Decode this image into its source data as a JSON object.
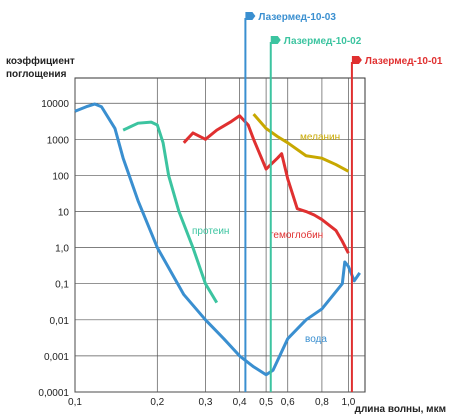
{
  "chart_data": {
    "type": "line",
    "log_x": true,
    "log_y": true,
    "grid": true,
    "y_label": [
      "коэффициент",
      "поглощения"
    ],
    "x_label": "длина волны, мкм",
    "xlim": [
      0.1,
      1.15
    ],
    "ylim": [
      0.0001,
      50000
    ],
    "xticks": [
      {
        "value": 0.1,
        "label": "0,1"
      },
      {
        "value": 0.2,
        "label": "0,2"
      },
      {
        "value": 0.3,
        "label": "0,3"
      },
      {
        "value": 0.4,
        "label": "0,4"
      },
      {
        "value": 0.5,
        "label": "0,5"
      },
      {
        "value": 0.6,
        "label": "0,6"
      },
      {
        "value": 0.8,
        "label": "0,8"
      },
      {
        "value": 1.0,
        "label": "1,0"
      }
    ],
    "yticks": [
      10000,
      1000,
      100,
      10,
      {
        "value": 1,
        "label": "1,0"
      },
      {
        "value": 0.1,
        "label": "0,1"
      },
      {
        "value": 0.01,
        "label": "0,01"
      },
      {
        "value": 0.001,
        "label": "0,001"
      },
      {
        "value": 0.0001,
        "label": "0,0001"
      }
    ],
    "series": [
      {
        "name": "вода",
        "color": "#3a8fd0",
        "x": [
          0.1,
          0.11,
          0.118,
          0.125,
          0.14,
          0.15,
          0.17,
          0.2,
          0.25,
          0.3,
          0.35,
          0.4,
          0.45,
          0.5,
          0.53,
          0.6,
          0.7,
          0.8,
          0.9,
          0.95,
          0.97,
          1.0,
          1.05,
          1.1
        ],
        "values": [
          6000,
          8000,
          9500,
          8000,
          2000,
          300,
          20,
          1,
          0.05,
          0.01,
          0.003,
          0.001,
          0.0005,
          0.0003,
          0.0004,
          0.003,
          0.01,
          0.02,
          0.06,
          0.1,
          0.4,
          0.3,
          0.12,
          0.2
        ]
      },
      {
        "name": "протеин",
        "color": "#3cc4a0",
        "x": [
          0.15,
          0.17,
          0.19,
          0.2,
          0.21,
          0.22,
          0.24,
          0.27,
          0.3,
          0.33
        ],
        "values": [
          1800,
          2800,
          3000,
          2500,
          800,
          100,
          10,
          1,
          0.1,
          0.03
        ]
      },
      {
        "name": "гемоглобин",
        "color": "#e03030",
        "x": [
          0.25,
          0.27,
          0.3,
          0.33,
          0.37,
          0.4,
          0.43,
          0.45,
          0.5,
          0.55,
          0.57,
          0.6,
          0.65,
          0.7,
          0.75,
          0.8,
          0.9,
          0.95,
          1.0
        ],
        "values": [
          800,
          1500,
          1000,
          1800,
          3000,
          4500,
          2500,
          1000,
          150,
          300,
          400,
          80,
          12,
          10,
          8,
          6,
          3,
          1.5,
          0.7
        ]
      },
      {
        "name": "меланин",
        "color": "#c8a800",
        "x": [
          0.45,
          0.5,
          0.55,
          0.6,
          0.7,
          0.8,
          0.9,
          1.0
        ],
        "values": [
          5000,
          2000,
          1200,
          800,
          350,
          300,
          200,
          130
        ]
      }
    ],
    "lasers": [
      {
        "label": "Лазермед-10-03",
        "x": 0.42,
        "color": "#3a8fd0"
      },
      {
        "label": "Лазермед-10-02",
        "x": 0.52,
        "color": "#3cc4a0"
      },
      {
        "label": "Лазермед-10-01",
        "x": 1.03,
        "color": "#e03030"
      }
    ]
  }
}
